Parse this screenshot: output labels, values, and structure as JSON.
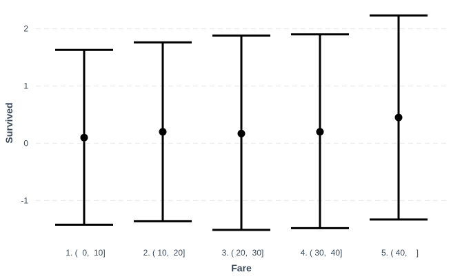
{
  "chart_data": {
    "type": "errorbar",
    "xlabel": "Fare",
    "ylabel": "Survived",
    "categories": [
      "1. (  0,  10]",
      "2. ( 10,  20]",
      "3. ( 20,  30]",
      "4. ( 30,  40]",
      "5. ( 40,    ]"
    ],
    "points": [
      {
        "category": "1. (  0,  10]",
        "estimate": 0.1,
        "lower": -1.42,
        "upper": 1.63
      },
      {
        "category": "2. ( 10,  20]",
        "estimate": 0.2,
        "lower": -1.36,
        "upper": 1.76
      },
      {
        "category": "3. ( 20,  30]",
        "estimate": 0.17,
        "lower": -1.51,
        "upper": 1.88
      },
      {
        "category": "4. ( 30,  40]",
        "estimate": 0.2,
        "lower": -1.48,
        "upper": 1.9
      },
      {
        "category": "5. ( 40,    ]",
        "estimate": 0.45,
        "lower": -1.33,
        "upper": 2.23
      }
    ],
    "y_ticks": [
      -1,
      0,
      1,
      2
    ],
    "ylim": [
      -1.6,
      2.4
    ],
    "grid": true,
    "legend": "none",
    "colors": {
      "marks": "#000000",
      "grid": "#ebebeb",
      "text": "#3b4a5a"
    }
  }
}
